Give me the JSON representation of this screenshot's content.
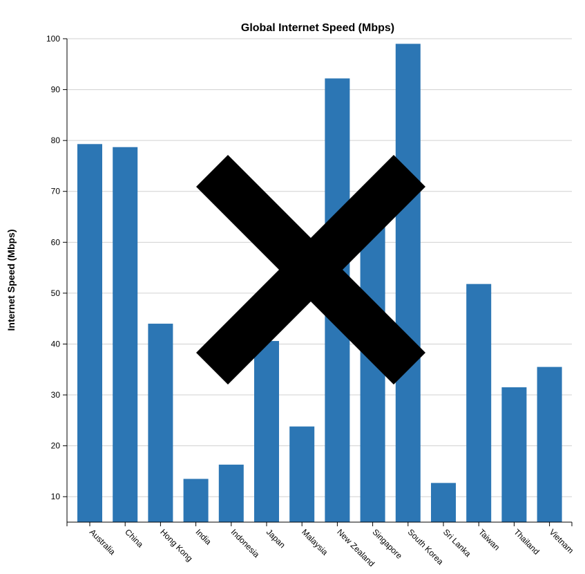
{
  "chart_data": {
    "type": "bar",
    "title": "Global Internet Speed (Mbps)",
    "ylabel": "Internet Speed (Mbps)",
    "xlabel": "",
    "ylim": [
      5,
      100
    ],
    "yticks": [
      10,
      20,
      30,
      40,
      50,
      60,
      70,
      80,
      90,
      100
    ],
    "grid": true,
    "categories": [
      "Australia",
      "China",
      "Hong Kong",
      "India",
      "Indonesia",
      "Japan",
      "Malaysia",
      "New Zealand",
      "Singapore",
      "South Korea",
      "Sri Lanka",
      "Taiwan",
      "Thailand",
      "Vietnam"
    ],
    "values": [
      79.3,
      78.7,
      44.0,
      13.5,
      16.3,
      40.6,
      23.8,
      92.2,
      65.0,
      99.0,
      12.7,
      51.8,
      31.5,
      35.5
    ],
    "bar_color": "#2c76b4",
    "overlay": "x-mark",
    "overlay_color": "#000000"
  }
}
